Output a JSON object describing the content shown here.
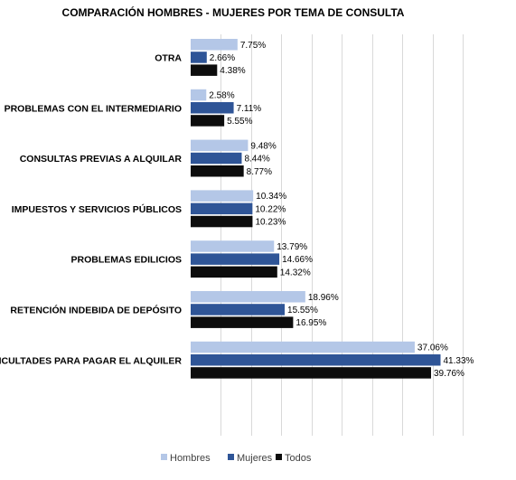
{
  "chart_data": {
    "type": "bar",
    "orientation": "horizontal",
    "title": "COMPARACIÓN HOMBRES - MUJERES POR TEMA DE CONSULTA",
    "categories": [
      "OTRA",
      "PROBLEMAS CON EL INTERMEDIARIO",
      "CONSULTAS PREVIAS A ALQUILAR",
      "IMPUESTOS Y SERVICIOS PÚBLICOS",
      "PROBLEMAS EDILICIOS",
      "RETENCIÓN INDEBIDA DE DEPÓSITO",
      "DIFICULTADES PARA PAGAR EL ALQUILER"
    ],
    "series": [
      {
        "name": "Hombres",
        "color": "#b4c7e7",
        "values": [
          7.75,
          2.58,
          9.48,
          10.34,
          13.79,
          18.96,
          37.06
        ],
        "labels": [
          "7.75%",
          "2.58%",
          "9.48%",
          "10.34%",
          "13.79%",
          "18.96%",
          "37.06%"
        ]
      },
      {
        "name": "Mujeres",
        "color": "#2f5597",
        "values": [
          2.66,
          7.11,
          8.44,
          10.22,
          14.66,
          15.55,
          41.33
        ],
        "labels": [
          "2.66%",
          "7.11%",
          "8.44%",
          "10.22%",
          "14.66%",
          "15.55%",
          "41.33%"
        ]
      },
      {
        "name": "Todos",
        "color": "#0d0d0d",
        "values": [
          4.38,
          5.55,
          8.77,
          10.23,
          14.32,
          16.95,
          39.76
        ],
        "labels": [
          "4.38%",
          "5.55%",
          "8.77%",
          "10.23%",
          "14.32%",
          "16.95%",
          "39.76%"
        ]
      }
    ],
    "xlim": [
      0,
      45
    ],
    "grid": true,
    "legend_position": "bottom"
  }
}
